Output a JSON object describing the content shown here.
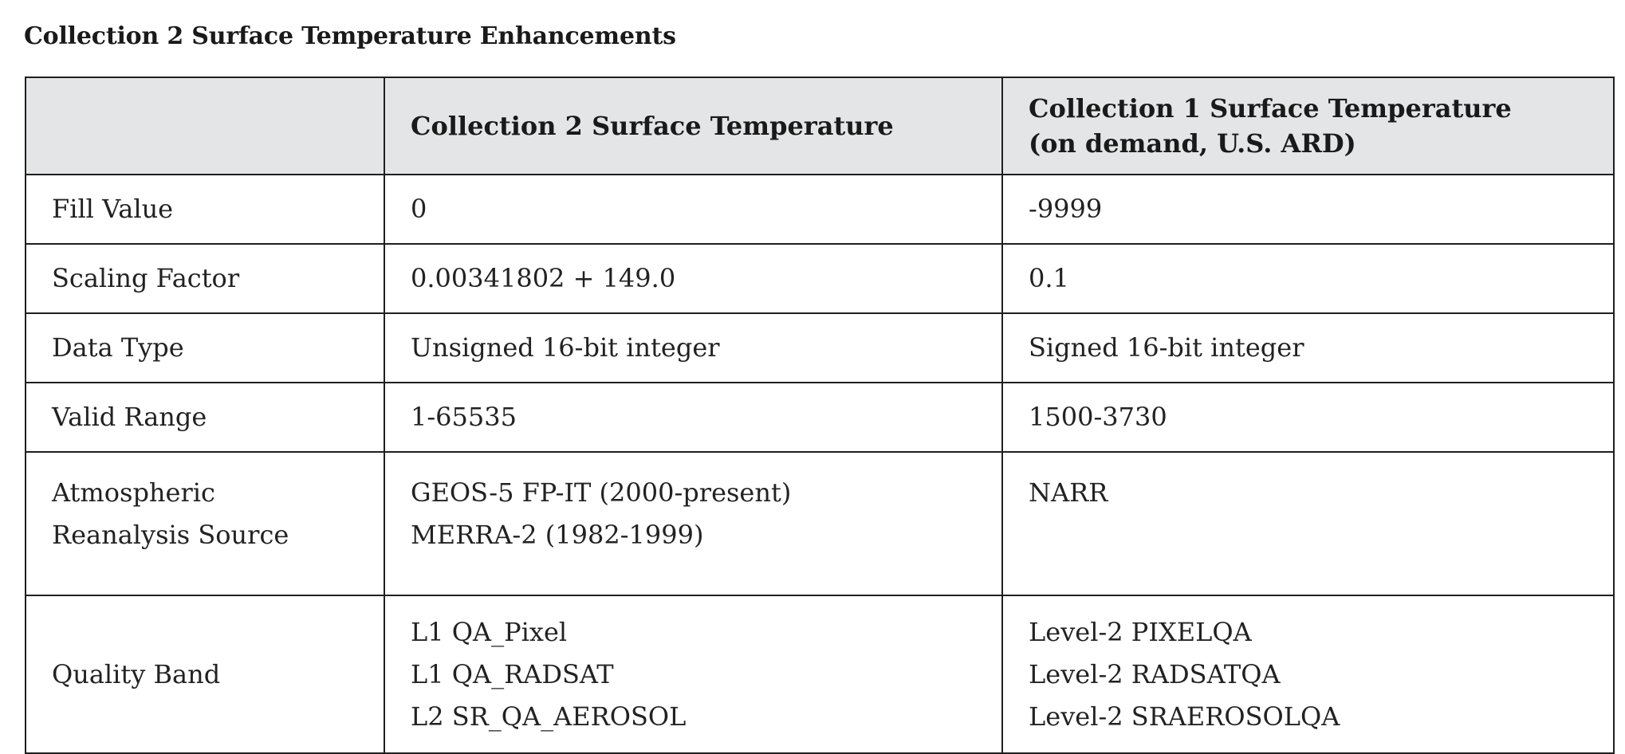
{
  "title": "Collection 2 Surface Temperature Enhancements",
  "table": {
    "headers": [
      "",
      "Collection 2 Surface Temperature",
      [
        "Collection 1 Surface Temperature",
        "(on demand, U.S. ARD)"
      ]
    ],
    "rows": {
      "fill_value": {
        "label": "Fill Value",
        "c2": "0",
        "c1": "-9999"
      },
      "scaling_factor": {
        "label": "Scaling Factor",
        "c2": "0.00341802 + 149.0",
        "c1": "0.1"
      },
      "data_type": {
        "label": "Data Type",
        "c2": "Unsigned 16-bit integer",
        "c1": "Signed 16-bit integer"
      },
      "valid_range": {
        "label": "Valid Range",
        "c2": "1-65535",
        "c1": "1500-3730"
      },
      "atmospheric": {
        "label": [
          "Atmospheric",
          "Reanalysis Source"
        ],
        "c2": [
          "GEOS-5 FP-IT (2000-present)",
          "MERRA-2 (1982-1999)"
        ],
        "c1": "NARR"
      },
      "quality_band": {
        "label": "Quality Band",
        "c2": [
          "L1 QA_Pixel",
          "L1 QA_RADSAT",
          "L2 SR_QA_AEROSOL"
        ],
        "c1": [
          "Level-2 PIXELQA",
          "Level-2 RADSATQA",
          "Level-2 SRAEROSOLQA"
        ]
      }
    }
  }
}
